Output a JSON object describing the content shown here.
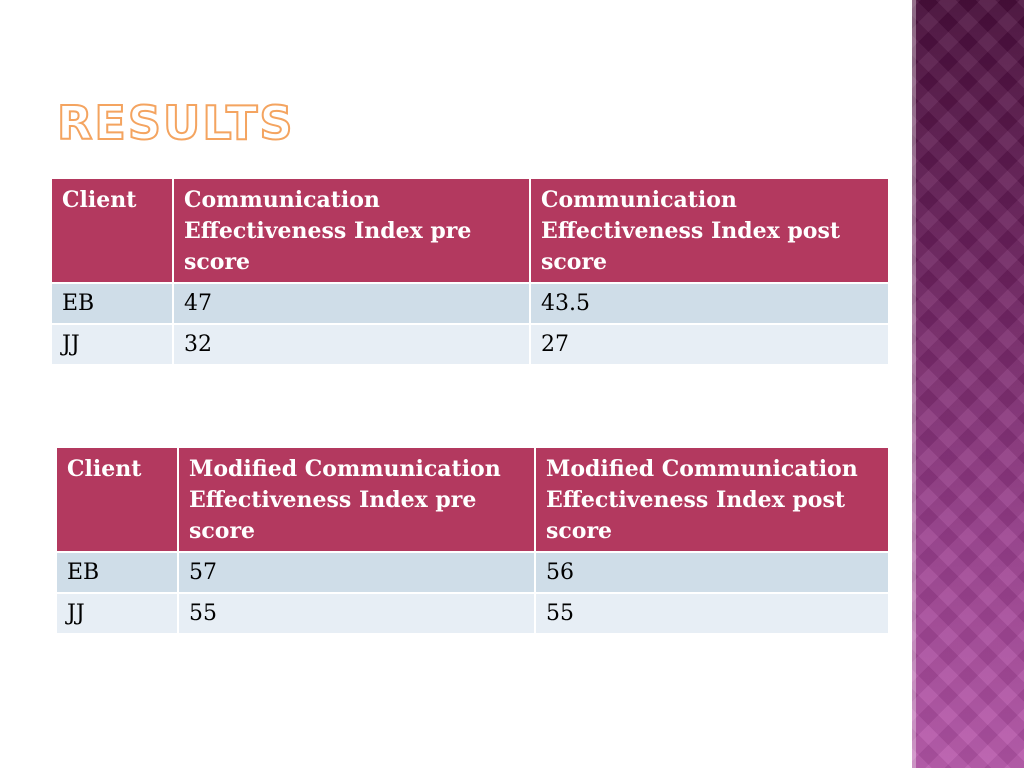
{
  "slide": {
    "title": "RESULTS"
  },
  "tables": [
    {
      "headers": [
        "Client",
        "Communication Effectiveness Index pre score",
        "Communication Effectiveness Index post score"
      ],
      "rows": [
        [
          "EB",
          "47",
          "43.5"
        ],
        [
          "JJ",
          "32",
          "27"
        ]
      ]
    },
    {
      "headers": [
        "Client",
        "Modified Communication Effectiveness Index pre score",
        "Modified Communication Effectiveness Index post score"
      ],
      "rows": [
        [
          "EB",
          "57",
          "56"
        ],
        [
          "JJ",
          "55",
          "55"
        ]
      ]
    }
  ],
  "colors": {
    "header_bg": "#b3395f",
    "row_a_bg": "#cfdde8",
    "row_b_bg": "#e7eef5",
    "title_outline": "#f4a460",
    "side_band_dark": "#4a0f3c",
    "side_band_light": "#b656aa"
  }
}
